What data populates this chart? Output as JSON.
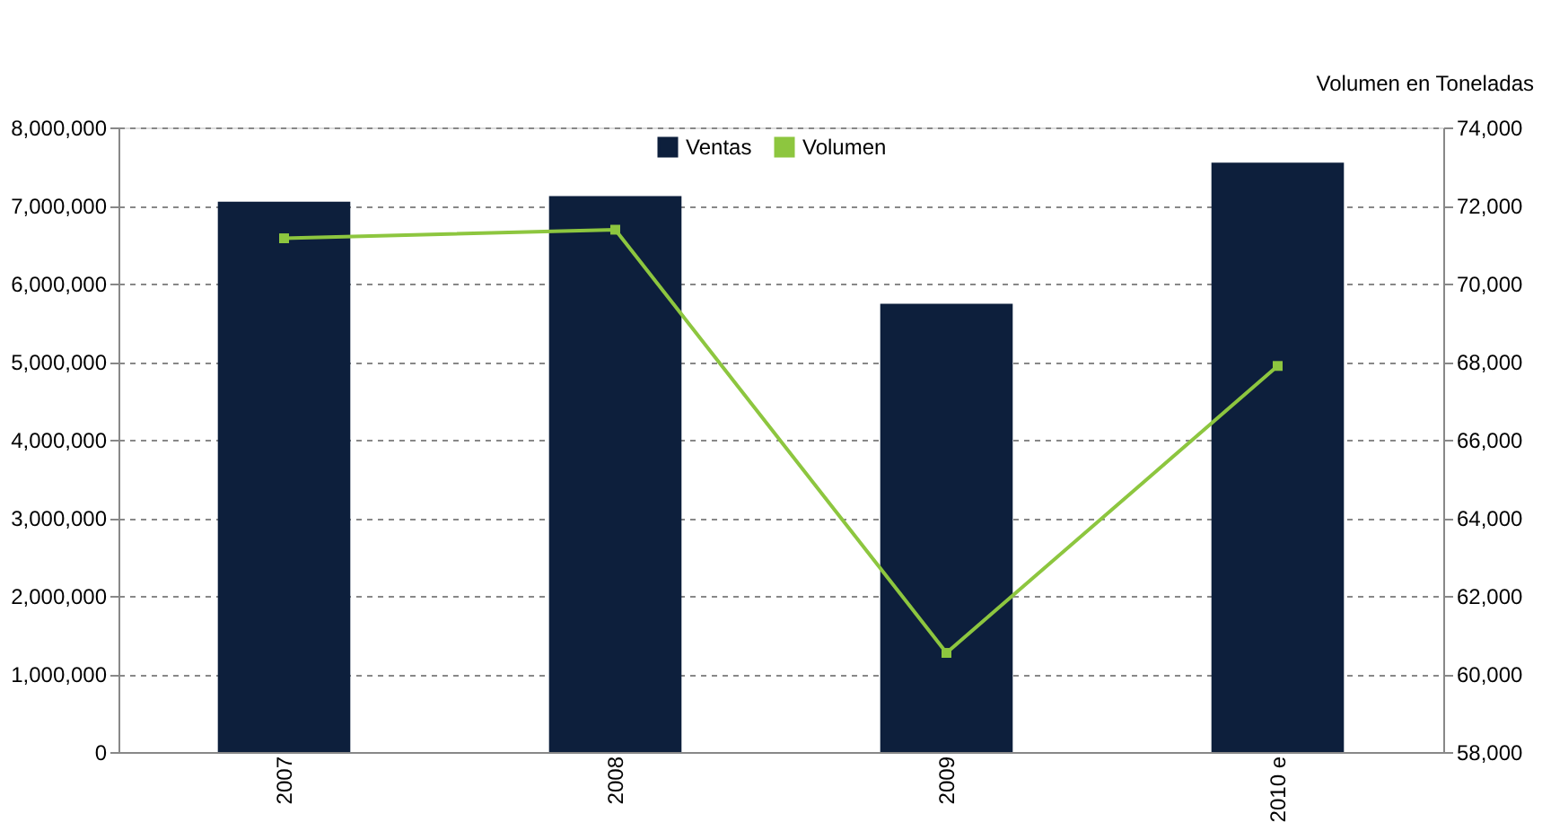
{
  "chart_data": {
    "type": "bar",
    "y2label": "Volumen en Toneladas",
    "categories": [
      "2007",
      "2008",
      "2009",
      "2010 e"
    ],
    "series": [
      {
        "name": "Ventas",
        "color": "#0d1f3c",
        "values": [
          7050000,
          7120000,
          5740000,
          7550000
        ]
      },
      {
        "name": "Volumen",
        "type": "line",
        "axis": "y2",
        "color": "#8dc63f",
        "marker": "square",
        "values": [
          71160,
          71380,
          60540,
          67890
        ]
      }
    ],
    "ylim": [
      0,
      8000000
    ],
    "yticks": [
      0,
      {
        "value": 1000000,
        "label": "1,000,000"
      },
      {
        "value": 2000000,
        "label": "2,000,000"
      },
      {
        "value": 3000000,
        "label": "3,000,000"
      },
      {
        "value": 4000000,
        "label": "4,000,000"
      },
      {
        "value": 5000000,
        "label": "5,000,000"
      },
      {
        "value": 6000000,
        "label": "6,000,000"
      },
      {
        "value": 7000000,
        "label": "7,000,000"
      },
      {
        "value": 8000000,
        "label": "8,000,000"
      }
    ],
    "y2lim": [
      58000,
      74000
    ],
    "y2ticks": [
      {
        "value": 58000,
        "label": "58,000"
      },
      {
        "value": 60000,
        "label": "60,000"
      },
      {
        "value": 62000,
        "label": "62,000"
      },
      {
        "value": 64000,
        "label": "64,000"
      },
      {
        "value": 66000,
        "label": "66,000"
      },
      {
        "value": 68000,
        "label": "68,000"
      },
      {
        "value": 70000,
        "label": "70,000"
      },
      {
        "value": 72000,
        "label": "72,000"
      },
      {
        "value": 74000,
        "label": "74,000"
      }
    ],
    "grid": "y",
    "legend": "top"
  }
}
